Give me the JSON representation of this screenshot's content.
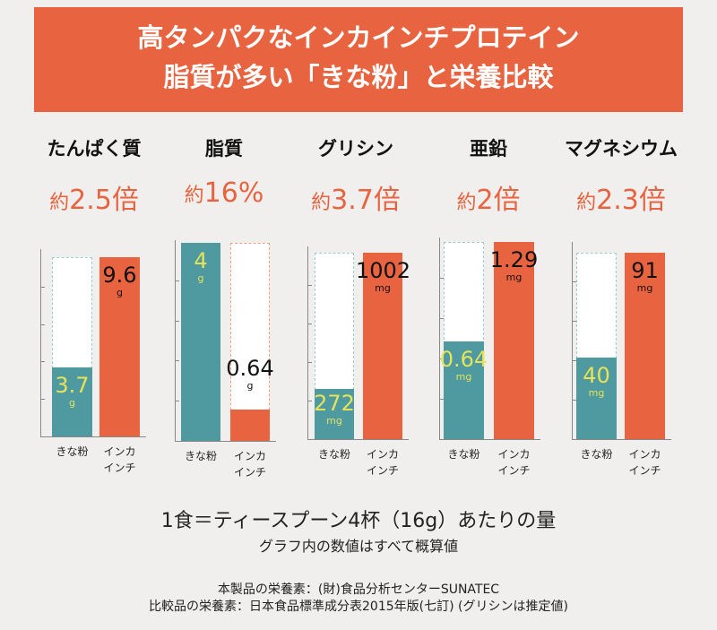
{
  "banner": {
    "line1": "高タンパクなインカインチプロテイン",
    "line2": "脂質が多い「きな粉」と栄養比較"
  },
  "colors": {
    "kinako": "#4e9aa0",
    "inca": "#e8633f",
    "kinako_value_text": "#e6e35a",
    "inca_value_text": "#111111",
    "background": "#f0efed"
  },
  "chart_data": {
    "type": "bar",
    "categories": [
      "きな粉",
      "インカ\nインチ"
    ],
    "category_lines": [
      [
        "きな粉"
      ],
      [
        "インカ",
        "インチ"
      ]
    ],
    "panels": [
      {
        "title": "たんぱく質",
        "multiplier_prefix": "約",
        "multiplier": "2.5倍",
        "unit": "g",
        "series": [
          {
            "label": "3.7",
            "value": 3.7
          },
          {
            "label": "9.6",
            "value": 9.6
          }
        ]
      },
      {
        "title": "脂質",
        "multiplier_prefix": "約",
        "multiplier": "16%",
        "unit": "g",
        "series": [
          {
            "label": "4",
            "value": 4
          },
          {
            "label": "0.64",
            "value": 0.64
          }
        ]
      },
      {
        "title": "グリシン",
        "multiplier_prefix": "約",
        "multiplier": "3.7倍",
        "unit": "mg",
        "series": [
          {
            "label": "272",
            "value": 272
          },
          {
            "label": "1002",
            "value": 1002
          }
        ]
      },
      {
        "title": "亜鉛",
        "multiplier_prefix": "約",
        "multiplier": "2倍",
        "unit": "mg",
        "series": [
          {
            "label": "0.64",
            "value": 0.64
          },
          {
            "label": "1.29",
            "value": 1.29
          }
        ]
      },
      {
        "title": "マグネシウム",
        "multiplier_prefix": "約",
        "multiplier": "2.3倍",
        "unit": "mg",
        "series": [
          {
            "label": "40",
            "value": 40
          },
          {
            "label": "91",
            "value": 91
          }
        ]
      }
    ]
  },
  "footer": {
    "serving": "1食＝ティースプーン4杯（16g）あたりの量",
    "note": "グラフ内の数値はすべて概算値",
    "source1": "本製品の栄養素：(財)食品分析センターSUNATEC",
    "source2": "比較品の栄養素：日本食品標準成分表2015年版(七訂) (グリシンは推定値)"
  }
}
